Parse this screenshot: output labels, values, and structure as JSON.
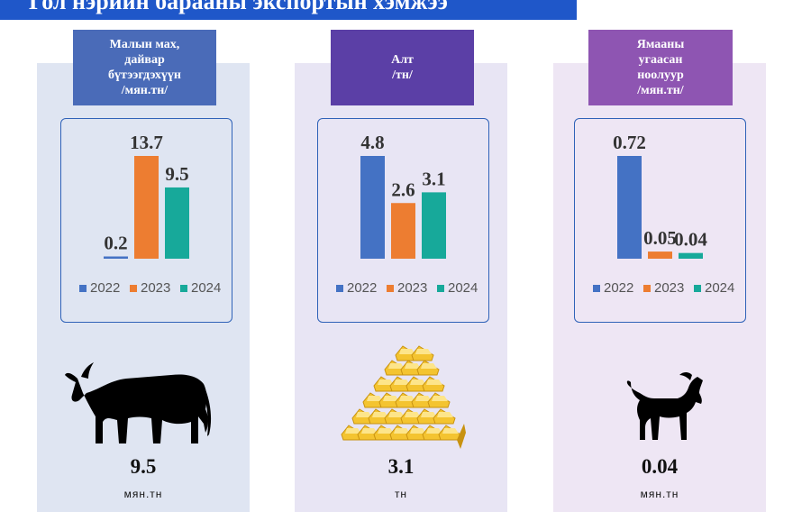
{
  "title": "Гол нэрийн барааны экспортын хэмжээ",
  "colors": {
    "title_bg": "#1f57c9",
    "series": [
      "#4472c4",
      "#ed7d31",
      "#17a99a"
    ]
  },
  "panels": [
    {
      "category": "Малын мах, дайвар бүтээгдэхүүн /мян.тн/",
      "category_lines": [
        "Малын мах,",
        "дайвар",
        "бүтээгдэхүүн",
        "/мян.тн/"
      ],
      "label_color": "#4a6bb8",
      "bg_color": "#dfe5f2",
      "icon": "cow-icon",
      "big_value": "9.5",
      "unit": "мян.тн"
    },
    {
      "category": "Алт /тн/",
      "category_lines": [
        "Алт",
        "/тн/"
      ],
      "label_color": "#5b3fa6",
      "bg_color": "#e8e5f4",
      "icon": "gold-bars-icon",
      "big_value": "3.1",
      "unit": "тн"
    },
    {
      "category": "Ямааны угаасан ноолуур /мян.тн/",
      "category_lines": [
        "Ямааны",
        "угаасан",
        "ноолуур",
        "/мян.тн/"
      ],
      "label_color": "#8e55b2",
      "bg_color": "#eee6f4",
      "icon": "goat-icon",
      "big_value": "0.04",
      "unit": "мян.тн"
    }
  ],
  "chart_data": [
    {
      "type": "bar",
      "categories": [
        "2022",
        "2023",
        "2024"
      ],
      "values": [
        0.2,
        13.7,
        9.5
      ],
      "value_labels": [
        "0.2",
        "13.7",
        "9.5"
      ],
      "legend": [
        "2022",
        "2023",
        "2024"
      ],
      "legend_position": "bottom",
      "ylim": [
        0,
        13.7
      ]
    },
    {
      "type": "bar",
      "categories": [
        "2022",
        "2023",
        "2024"
      ],
      "values": [
        4.8,
        2.6,
        3.1
      ],
      "value_labels": [
        "4.8",
        "2.6",
        "3.1"
      ],
      "legend": [
        "2022",
        "2023",
        "2024"
      ],
      "legend_position": "bottom",
      "ylim": [
        0,
        4.8
      ]
    },
    {
      "type": "bar",
      "categories": [
        "2022",
        "2023",
        "2024"
      ],
      "values": [
        0.72,
        0.05,
        0.04
      ],
      "value_labels": [
        "0.72",
        "0.05",
        "0.04"
      ],
      "legend": [
        "2022",
        "2023",
        "2024"
      ],
      "legend_position": "bottom",
      "ylim": [
        0,
        0.72
      ]
    }
  ]
}
